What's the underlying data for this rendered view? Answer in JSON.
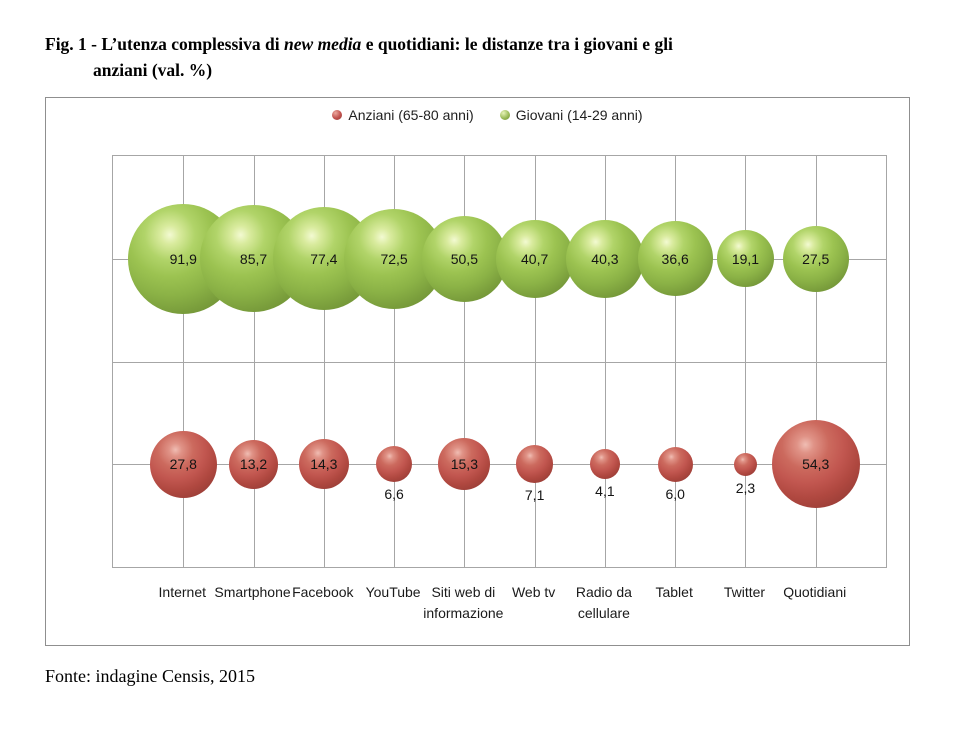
{
  "figure": {
    "title": {
      "line1_pre": "Fig. 1 - L’utenza complessiva di ",
      "line1_italic": "new media",
      "line1_post": " e quotidiani: le distanze tra i giovani e gli",
      "line2": "anziani (val. %)"
    },
    "source": "Fonte: indagine Censis, 2015"
  },
  "chart_data": {
    "type": "bubble",
    "title": "L’utenza complessiva di new media e quotidiani: le distanze tra i giovani e gli anziani (val. %)",
    "categories": [
      "Internet",
      "Smartphone",
      "Facebook",
      "YouTube",
      "Siti web di informazione",
      "Web tv",
      "Radio da cellulare",
      "Tablet",
      "Twitter",
      "Quotidiani"
    ],
    "series": [
      {
        "name": "Anziani (65-80 anni)",
        "key": "anziani",
        "color": "#c0504d",
        "row": "bottom",
        "values": [
          27.8,
          13.2,
          14.3,
          6.6,
          15.3,
          7.1,
          4.1,
          6.0,
          2.3,
          54.3
        ],
        "value_labels": [
          "27,8",
          "13,2",
          "14,3",
          "6,6",
          "15,3",
          "7,1",
          "4,1",
          "6,0",
          "2,3",
          "54,3"
        ]
      },
      {
        "name": "Giovani (14-29 anni)",
        "key": "giovani",
        "color": "#9bbb59",
        "row": "top",
        "values": [
          91.9,
          85.7,
          77.4,
          72.5,
          50.5,
          40.7,
          40.3,
          36.6,
          19.1,
          27.5
        ],
        "value_labels": [
          "91,9",
          "85,7",
          "77,4",
          "72,5",
          "50,5",
          "40,7",
          "40,3",
          "36,6",
          "19,1",
          "27,5"
        ]
      }
    ],
    "legend_position": "top-center",
    "grid": true,
    "decimal_separator": ","
  }
}
